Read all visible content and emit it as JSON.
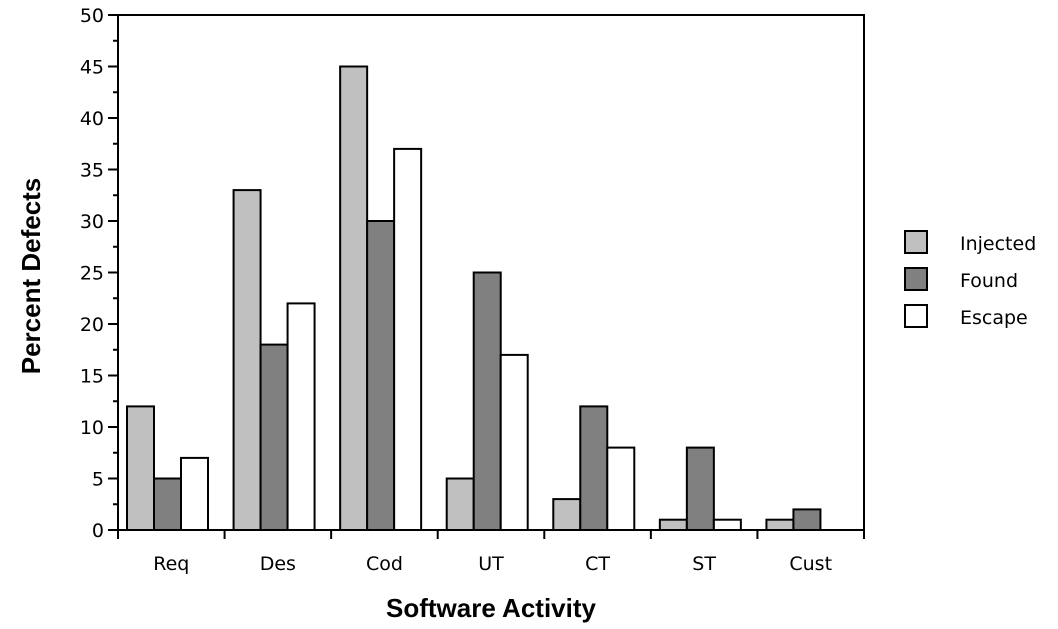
{
  "chart_data": {
    "type": "bar",
    "title": "",
    "xlabel": "Software Activity",
    "ylabel": "Percent Defects",
    "categories": [
      "Req",
      "Des",
      "Cod",
      "UT",
      "CT",
      "ST",
      "Cust"
    ],
    "series": [
      {
        "name": "Injected",
        "color": "#c0c0c0",
        "values": [
          12,
          33,
          45,
          5,
          3,
          1,
          1
        ]
      },
      {
        "name": "Found",
        "color": "#808080",
        "values": [
          5,
          18,
          30,
          25,
          12,
          8,
          2
        ]
      },
      {
        "name": "Escape",
        "color": "#ffffff",
        "values": [
          7,
          22,
          37,
          17,
          8,
          1,
          0
        ]
      }
    ],
    "ylim": [
      0,
      50
    ],
    "yticks": [
      0,
      5,
      10,
      15,
      20,
      25,
      30,
      35,
      40,
      45,
      50
    ],
    "grid": false,
    "legend_position": "right"
  }
}
